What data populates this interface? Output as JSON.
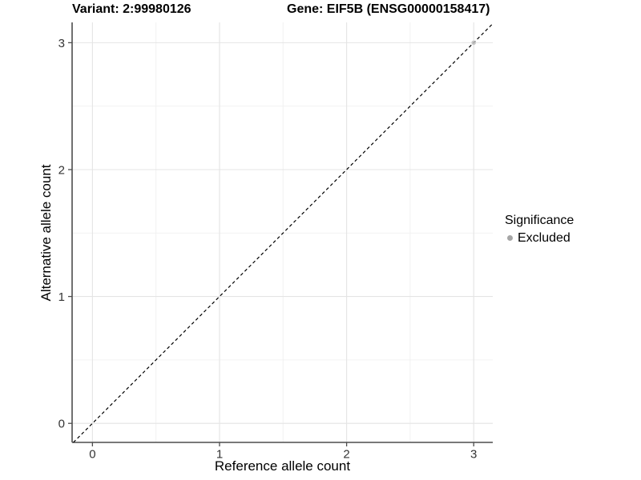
{
  "chart_data": {
    "type": "scatter",
    "title_left": "Variant: 2:99980126",
    "title_right": "Gene: EIF5B (ENSG00000158417)",
    "xlabel": "Reference allele count",
    "ylabel": "Alternative allele count",
    "xlim": [
      -0.16,
      3.15
    ],
    "ylim": [
      -0.15,
      3.16
    ],
    "x_major_ticks": [
      0,
      1,
      2,
      3
    ],
    "y_major_ticks": [
      0,
      1,
      2,
      3
    ],
    "x_minor_ticks": [
      0.5,
      1.5,
      2.5
    ],
    "y_minor_ticks": [
      0.5,
      1.5,
      2.5
    ],
    "grid": "on",
    "identity_line": {
      "slope": 1,
      "intercept": 0,
      "style": "dashed",
      "color": "#000000"
    },
    "series": [
      {
        "name": "Excluded",
        "marker": "circle",
        "color": "#bdbdbd",
        "points": [
          {
            "x": 3,
            "y": 3
          }
        ]
      }
    ],
    "legend": {
      "title": "Significance",
      "position": "right",
      "items": [
        {
          "label": "Excluded",
          "color": "#a6a6a6",
          "marker": "circle"
        }
      ]
    },
    "style": {
      "grid_major_color": "#e4e4e4",
      "grid_minor_color": "#f0f0f0",
      "axis_line_color": "#4d4d4d",
      "tick_label_color": "#333333",
      "background": "#ffffff"
    }
  }
}
